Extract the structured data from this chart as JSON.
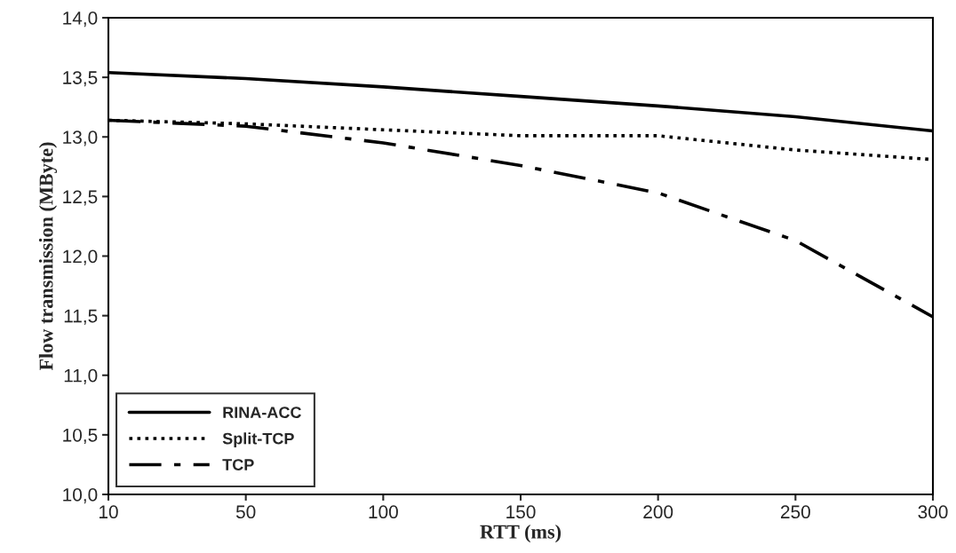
{
  "chart_data": {
    "type": "line",
    "xlabel": "RTT (ms)",
    "ylabel": "Flow transmission (MByte)",
    "categories": [
      "10",
      "50",
      "100",
      "150",
      "200",
      "250",
      "300"
    ],
    "series": [
      {
        "name": "RINA-ACC",
        "color": "#000000",
        "line_style": "solid",
        "values": [
          13.54,
          13.49,
          13.42,
          13.34,
          13.26,
          13.17,
          13.05
        ]
      },
      {
        "name": "Split-TCP",
        "color": "#000000",
        "line_style": "dotted",
        "values": [
          13.14,
          13.11,
          13.06,
          13.01,
          13.01,
          12.89,
          12.81
        ]
      },
      {
        "name": "TCP",
        "color": "#000000",
        "line_style": "dashdot",
        "values": [
          13.14,
          13.09,
          12.95,
          12.76,
          12.53,
          12.13,
          11.49
        ]
      }
    ],
    "ylim": [
      10,
      14
    ],
    "yticks": [
      {
        "value": 10,
        "label": "10,0"
      },
      {
        "value": 10.5,
        "label": "10,5"
      },
      {
        "value": 11,
        "label": "11,0"
      },
      {
        "value": 11.5,
        "label": "11,5"
      },
      {
        "value": 12,
        "label": "12,0"
      },
      {
        "value": 12.5,
        "label": "12,5"
      },
      {
        "value": 13,
        "label": "13,0"
      },
      {
        "value": 13.5,
        "label": "13,5"
      },
      {
        "value": 14,
        "label": "14,0"
      }
    ],
    "grid": false,
    "legend": "bottom left",
    "marker": "none"
  }
}
